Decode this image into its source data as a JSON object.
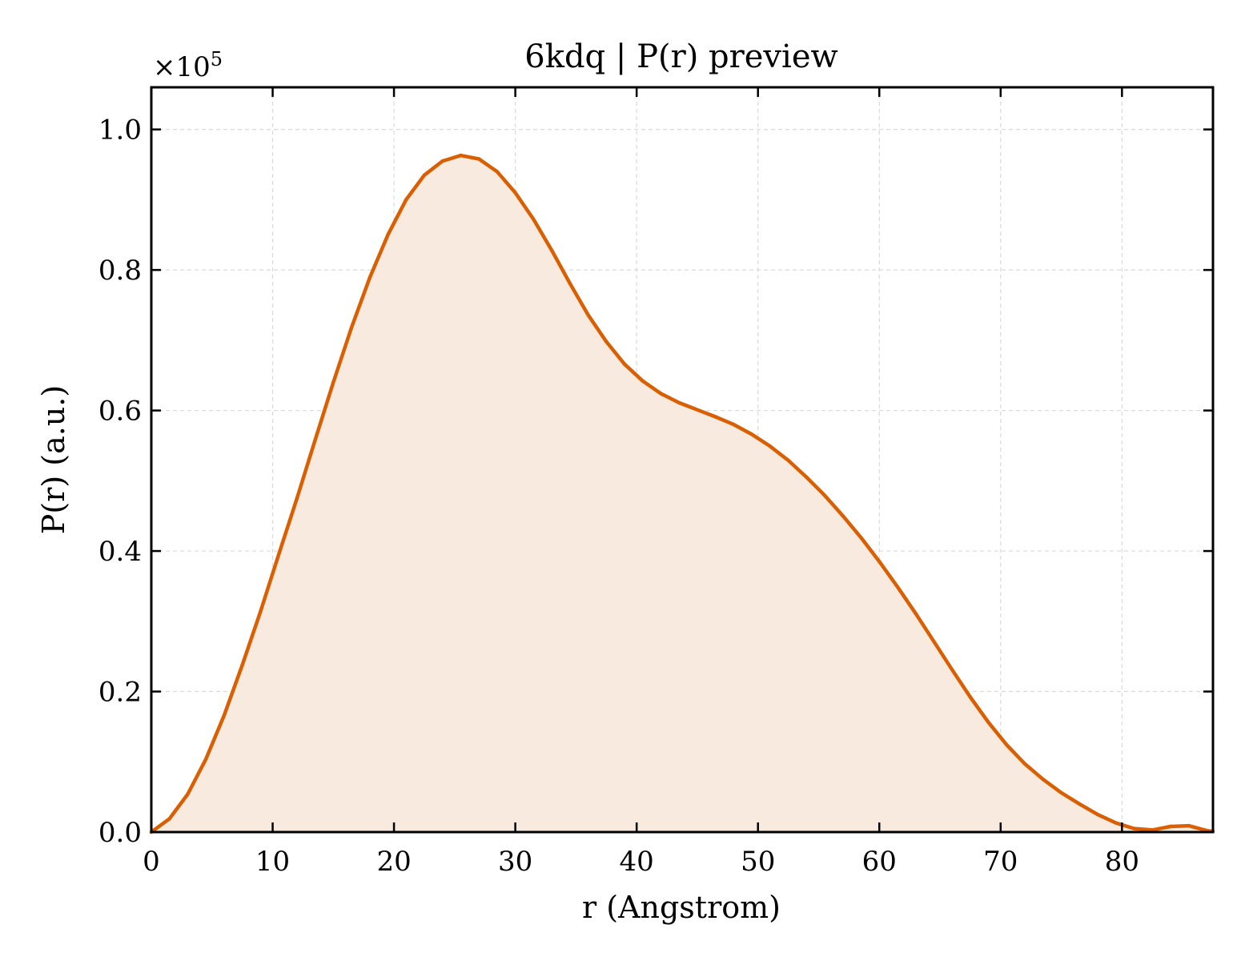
{
  "chart_data": {
    "type": "area",
    "title": "6kdq | P(r) preview",
    "xlabel": "r (Angstrom)",
    "ylabel": "P(r) (a.u.)",
    "y_multiplier_label": "×10",
    "y_multiplier_exponent": "5",
    "xlim": [
      0,
      87.5
    ],
    "ylim": [
      0,
      1.06
    ],
    "y_scale_factor": 100000,
    "grid": true,
    "legend": "none",
    "x_ticks": [
      0,
      10,
      20,
      30,
      40,
      50,
      60,
      70,
      80
    ],
    "x_tick_labels": [
      "0",
      "10",
      "20",
      "30",
      "40",
      "50",
      "60",
      "70",
      "80"
    ],
    "y_ticks": [
      0.0,
      0.2,
      0.4,
      0.6,
      0.8,
      1.0
    ],
    "y_tick_labels": [
      "0.0",
      "0.2",
      "0.4",
      "0.6",
      "0.8",
      "1.0"
    ],
    "colors": {
      "line": "#d95f02",
      "fill": "#f9eae0",
      "grid": "#d9d9d9"
    },
    "x": [
      0,
      1.5,
      3,
      4.5,
      6,
      7.5,
      9,
      10.5,
      12,
      13.5,
      15,
      16.5,
      18,
      19.5,
      21,
      22.5,
      24,
      25.5,
      27,
      28.5,
      30,
      31.5,
      33,
      34.5,
      36,
      37.5,
      39,
      40.5,
      42,
      43.5,
      45,
      46.5,
      48,
      49.5,
      51,
      52.5,
      54,
      55.5,
      57,
      58.5,
      60,
      61.5,
      63,
      64.5,
      66,
      67.5,
      69,
      70.5,
      72,
      73.5,
      75,
      76.5,
      78,
      79.5,
      81,
      82.5,
      84,
      85.5,
      87
    ],
    "values": [
      0.0,
      0.019,
      0.054,
      0.104,
      0.166,
      0.238,
      0.314,
      0.395,
      0.475,
      0.558,
      0.64,
      0.718,
      0.789,
      0.85,
      0.9,
      0.935,
      0.955,
      0.963,
      0.958,
      0.94,
      0.91,
      0.872,
      0.828,
      0.781,
      0.736,
      0.698,
      0.666,
      0.642,
      0.624,
      0.611,
      0.601,
      0.591,
      0.58,
      0.566,
      0.549,
      0.529,
      0.505,
      0.479,
      0.45,
      0.419,
      0.385,
      0.349,
      0.311,
      0.271,
      0.231,
      0.192,
      0.156,
      0.124,
      0.097,
      0.075,
      0.056,
      0.04,
      0.025,
      0.013,
      0.005,
      0.003,
      0.008,
      0.009,
      0.002
    ]
  }
}
